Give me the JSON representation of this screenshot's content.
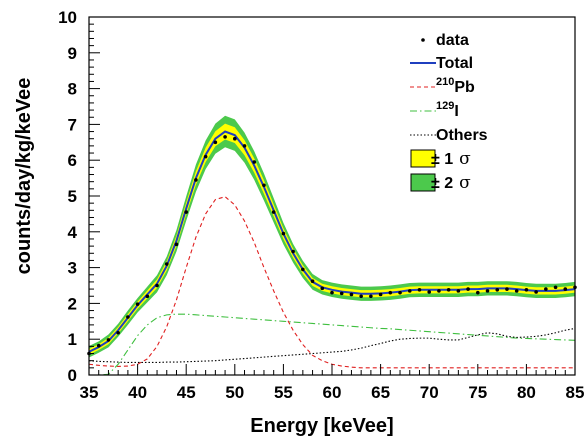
{
  "chart_data": {
    "type": "line",
    "xlabel": "Energy [keVee]",
    "ylabel": "counts/day/kg/keVee",
    "xlim": [
      35,
      85
    ],
    "ylim": [
      0,
      10
    ],
    "x_ticks": [
      "35",
      "40",
      "45",
      "50",
      "55",
      "60",
      "65",
      "70",
      "75",
      "80",
      "85"
    ],
    "y_ticks": [
      "0",
      "1",
      "2",
      "3",
      "4",
      "5",
      "6",
      "7",
      "8",
      "9",
      "10"
    ],
    "grid": false,
    "legend_position": "top-right",
    "x": [
      35,
      36,
      37,
      38,
      39,
      40,
      41,
      42,
      43,
      44,
      45,
      46,
      47,
      48,
      49,
      50,
      51,
      52,
      53,
      54,
      55,
      56,
      57,
      58,
      59,
      60,
      61,
      62,
      63,
      64,
      65,
      66,
      67,
      68,
      69,
      70,
      71,
      72,
      73,
      74,
      75,
      76,
      77,
      78,
      79,
      80,
      81,
      82,
      83,
      84,
      85
    ],
    "series": [
      {
        "name": "Total",
        "color": "#1f3fbf",
        "style": "solid",
        "values": [
          0.65,
          0.78,
          0.95,
          1.25,
          1.6,
          1.95,
          2.25,
          2.55,
          3.05,
          3.75,
          4.65,
          5.5,
          6.15,
          6.6,
          6.8,
          6.7,
          6.35,
          5.85,
          5.25,
          4.6,
          3.95,
          3.4,
          2.95,
          2.6,
          2.45,
          2.38,
          2.33,
          2.3,
          2.27,
          2.27,
          2.28,
          2.3,
          2.33,
          2.37,
          2.38,
          2.38,
          2.38,
          2.38,
          2.38,
          2.4,
          2.4,
          2.42,
          2.42,
          2.42,
          2.4,
          2.37,
          2.35,
          2.35,
          2.35,
          2.37,
          2.4
        ]
      },
      {
        "name": "210Pb",
        "label_main": "Pb",
        "label_sup": "210",
        "color": "#e02020",
        "style": "dashed",
        "values": [
          0.3,
          0.27,
          0.25,
          0.24,
          0.25,
          0.3,
          0.45,
          0.8,
          1.35,
          2.1,
          3.0,
          3.85,
          4.5,
          4.9,
          4.98,
          4.75,
          4.3,
          3.7,
          3.0,
          2.35,
          1.75,
          1.25,
          0.85,
          0.55,
          0.4,
          0.3,
          0.25,
          0.22,
          0.2,
          0.2,
          0.2,
          0.2,
          0.2,
          0.2,
          0.2,
          0.2,
          0.2,
          0.2,
          0.2,
          0.2,
          0.2,
          0.2,
          0.2,
          0.2,
          0.2,
          0.2,
          0.2,
          0.2,
          0.2,
          0.2,
          0.2
        ]
      },
      {
        "name": "129I",
        "label_main": "I",
        "label_sup": "129",
        "color": "#3fbf3f",
        "style": "dashdot",
        "values": [
          0.0,
          0.0,
          0.02,
          0.3,
          0.7,
          1.1,
          1.4,
          1.6,
          1.68,
          1.7,
          1.7,
          1.68,
          1.66,
          1.64,
          1.62,
          1.6,
          1.58,
          1.56,
          1.54,
          1.52,
          1.5,
          1.48,
          1.46,
          1.44,
          1.42,
          1.4,
          1.38,
          1.36,
          1.34,
          1.32,
          1.3,
          1.29,
          1.27,
          1.25,
          1.23,
          1.21,
          1.19,
          1.17,
          1.15,
          1.13,
          1.11,
          1.09,
          1.07,
          1.05,
          1.03,
          1.02,
          1.01,
          1.0,
          0.99,
          0.98,
          0.97
        ]
      },
      {
        "name": "Others",
        "color": "#000000",
        "style": "dotted",
        "values": [
          0.4,
          0.38,
          0.37,
          0.36,
          0.35,
          0.35,
          0.35,
          0.35,
          0.36,
          0.36,
          0.37,
          0.38,
          0.39,
          0.4,
          0.42,
          0.44,
          0.46,
          0.48,
          0.5,
          0.52,
          0.54,
          0.56,
          0.58,
          0.6,
          0.62,
          0.64,
          0.66,
          0.7,
          0.75,
          0.82,
          0.88,
          0.95,
          1.0,
          1.02,
          1.03,
          1.03,
          1.0,
          0.98,
          0.98,
          1.05,
          1.12,
          1.18,
          1.15,
          1.08,
          1.05,
          1.06,
          1.08,
          1.12,
          1.18,
          1.25,
          1.3
        ]
      }
    ],
    "bands": [
      {
        "name": "± 1 σ",
        "color": "#ffff00",
        "half_width": [
          0.08,
          0.08,
          0.09,
          0.09,
          0.1,
          0.1,
          0.11,
          0.12,
          0.13,
          0.15,
          0.17,
          0.19,
          0.2,
          0.21,
          0.22,
          0.22,
          0.21,
          0.2,
          0.19,
          0.17,
          0.15,
          0.13,
          0.12,
          0.11,
          0.1,
          0.1,
          0.1,
          0.1,
          0.1,
          0.1,
          0.1,
          0.1,
          0.1,
          0.1,
          0.1,
          0.1,
          0.1,
          0.1,
          0.1,
          0.1,
          0.1,
          0.1,
          0.1,
          0.1,
          0.1,
          0.1,
          0.1,
          0.1,
          0.1,
          0.1,
          0.1
        ]
      },
      {
        "name": "± 2 σ",
        "color": "#4cc94c",
        "half_width": [
          0.16,
          0.16,
          0.18,
          0.18,
          0.2,
          0.2,
          0.22,
          0.24,
          0.26,
          0.3,
          0.34,
          0.38,
          0.4,
          0.42,
          0.44,
          0.44,
          0.42,
          0.4,
          0.38,
          0.34,
          0.3,
          0.26,
          0.24,
          0.22,
          0.2,
          0.2,
          0.2,
          0.2,
          0.2,
          0.2,
          0.2,
          0.2,
          0.2,
          0.2,
          0.2,
          0.2,
          0.2,
          0.2,
          0.2,
          0.2,
          0.2,
          0.2,
          0.2,
          0.2,
          0.2,
          0.2,
          0.2,
          0.2,
          0.2,
          0.2,
          0.2
        ]
      }
    ],
    "data_points": {
      "name": "data",
      "color": "#000000",
      "x": [
        35,
        36,
        37,
        38,
        39,
        40,
        41,
        42,
        43,
        44,
        45,
        46,
        47,
        48,
        49,
        50,
        51,
        52,
        53,
        54,
        55,
        56,
        57,
        58,
        59,
        60,
        61,
        62,
        63,
        64,
        65,
        66,
        67,
        68,
        69,
        70,
        71,
        72,
        73,
        74,
        75,
        76,
        77,
        78,
        79,
        80,
        81,
        82,
        83,
        84,
        85
      ],
      "y": [
        0.6,
        0.82,
        0.98,
        1.18,
        1.62,
        1.98,
        2.2,
        2.5,
        3.1,
        3.65,
        4.55,
        5.45,
        6.1,
        6.5,
        6.65,
        6.6,
        6.4,
        5.95,
        5.3,
        4.55,
        3.95,
        3.45,
        2.95,
        2.62,
        2.42,
        2.3,
        2.28,
        2.25,
        2.2,
        2.2,
        2.25,
        2.3,
        2.3,
        2.35,
        2.38,
        2.32,
        2.35,
        2.38,
        2.35,
        2.4,
        2.3,
        2.35,
        2.38,
        2.4,
        2.35,
        2.38,
        2.32,
        2.4,
        2.45,
        2.4,
        2.45
      ]
    },
    "legend": [
      {
        "label": "data",
        "kind": "dot"
      },
      {
        "label": "Total",
        "kind": "line"
      },
      {
        "label": "Pb",
        "sup": "210",
        "kind": "line"
      },
      {
        "label": "I",
        "sup": "129",
        "kind": "line"
      },
      {
        "label": "Others",
        "kind": "line"
      },
      {
        "label": "± 1",
        "sigma": "σ",
        "kind": "box"
      },
      {
        "label": "± 2",
        "sigma": "σ",
        "kind": "box"
      }
    ]
  }
}
